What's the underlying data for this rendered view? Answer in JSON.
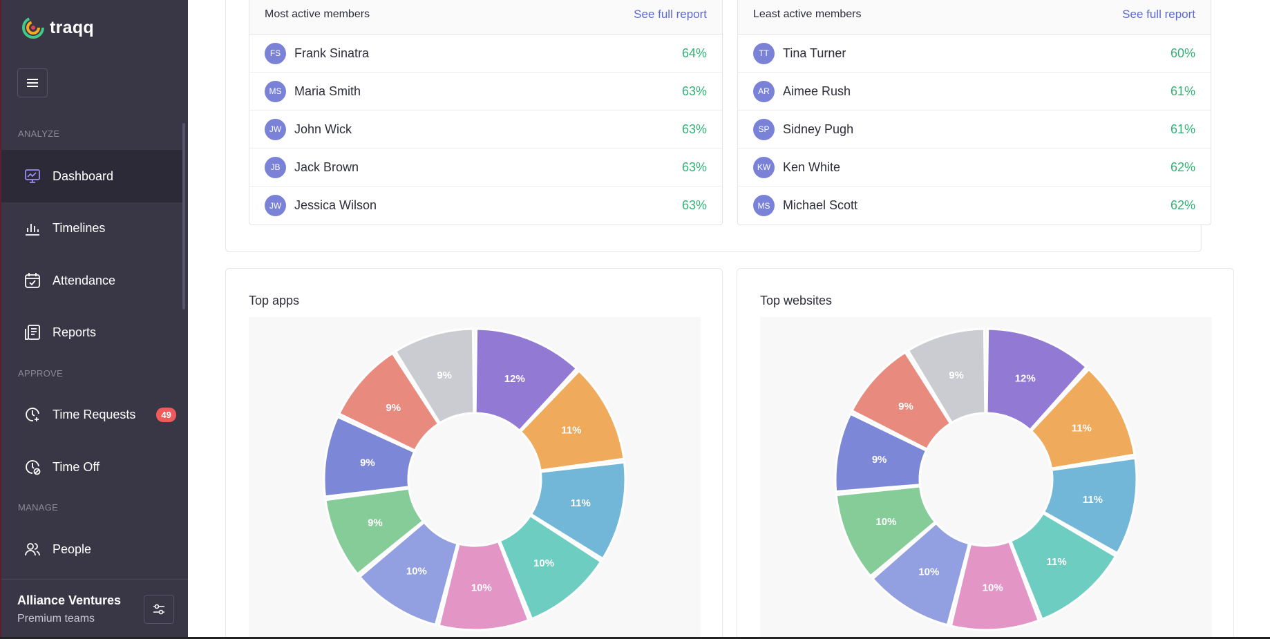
{
  "app": {
    "name": "traqq"
  },
  "sidebar": {
    "sections": {
      "analyze": "ANALYZE",
      "approve": "APPROVE",
      "manage": "MANAGE"
    },
    "items": [
      {
        "label": "Dashboard",
        "icon": "dashboard-icon"
      },
      {
        "label": "Timelines",
        "icon": "bar-chart-icon"
      },
      {
        "label": "Attendance",
        "icon": "calendar-check-icon"
      },
      {
        "label": "Reports",
        "icon": "report-icon"
      },
      {
        "label": "Time Requests",
        "icon": "clock-plus-icon",
        "badge": "49"
      },
      {
        "label": "Time Off",
        "icon": "clock-off-icon"
      },
      {
        "label": "People",
        "icon": "people-icon"
      }
    ],
    "account": {
      "name": "Alliance Ventures",
      "plan": "Premium teams"
    }
  },
  "most_active": {
    "title": "Most active members",
    "link": "See full report",
    "rows": [
      {
        "initials": "FS",
        "name": "Frank Sinatra",
        "pct": "64%"
      },
      {
        "initials": "MS",
        "name": "Maria Smith",
        "pct": "63%"
      },
      {
        "initials": "JW",
        "name": "John Wick",
        "pct": "63%"
      },
      {
        "initials": "JB",
        "name": "Jack Brown",
        "pct": "63%"
      },
      {
        "initials": "JW",
        "name": "Jessica Wilson",
        "pct": "63%"
      }
    ]
  },
  "least_active": {
    "title": "Least active members",
    "link": "See full report",
    "rows": [
      {
        "initials": "TT",
        "name": "Tina Turner",
        "pct": "60%"
      },
      {
        "initials": "AR",
        "name": "Aimee Rush",
        "pct": "61%"
      },
      {
        "initials": "SP",
        "name": "Sidney Pugh",
        "pct": "61%"
      },
      {
        "initials": "KW",
        "name": "Ken White",
        "pct": "62%"
      },
      {
        "initials": "MS",
        "name": "Michael Scott",
        "pct": "62%"
      }
    ]
  },
  "colors": {
    "brand": "#393646",
    "link": "#5b67d8",
    "positive": "#2fb374",
    "badge": "#f05a5a",
    "slices": [
      "#9279d4",
      "#f0aa5c",
      "#72b6d8",
      "#6ccdc0",
      "#e396c6",
      "#929fe0",
      "#86cc98",
      "#7d87d8",
      "#e88a7d",
      "#cbcbd2"
    ]
  },
  "chart_data": [
    {
      "type": "pie",
      "title": "Top apps",
      "values": [
        12,
        11,
        11,
        10,
        10,
        10,
        9,
        9,
        9,
        9
      ],
      "labels": [
        "12%",
        "11%",
        "11%",
        "10%",
        "10%",
        "10%",
        "9%",
        "9%",
        "9%",
        "9%"
      ]
    },
    {
      "type": "pie",
      "title": "Top websites",
      "values": [
        12,
        11,
        11,
        11,
        10,
        10,
        10,
        9,
        9,
        9
      ],
      "labels": [
        "12%",
        "11%",
        "11%",
        "11%",
        "10%",
        "10%",
        "10%",
        "9%",
        "9%",
        "9%"
      ]
    }
  ]
}
